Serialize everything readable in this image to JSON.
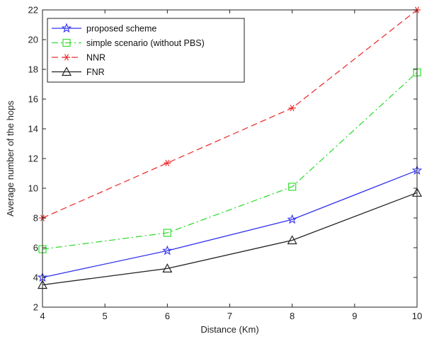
{
  "chart_data": {
    "type": "line",
    "title": "",
    "xlabel": "Distance (Km)",
    "ylabel": "Average number of the hops",
    "xlim": [
      4,
      10
    ],
    "ylim": [
      2,
      22
    ],
    "xticks": [
      4,
      5,
      6,
      7,
      8,
      9,
      10
    ],
    "yticks": [
      2,
      4,
      6,
      8,
      10,
      12,
      14,
      16,
      18,
      20,
      22
    ],
    "grid": false,
    "legend_position": "top-left",
    "series": [
      {
        "name": "proposed scheme",
        "color": "#3333ee",
        "dash": "solid",
        "marker": "star",
        "x": [
          4,
          6,
          8,
          10
        ],
        "y": [
          4.0,
          5.8,
          7.9,
          11.2
        ]
      },
      {
        "name": "simple scenario (without PBS)",
        "color": "#33dd33",
        "dash": "dashdot",
        "marker": "square",
        "x": [
          4,
          6,
          8,
          10
        ],
        "y": [
          5.9,
          7.0,
          10.1,
          17.8
        ]
      },
      {
        "name": "NNR",
        "color": "#ee3333",
        "dash": "dashed",
        "marker": "asterisk",
        "x": [
          4,
          6,
          8,
          10
        ],
        "y": [
          8.0,
          11.7,
          15.4,
          22.0
        ]
      },
      {
        "name": "FNR",
        "color": "#222222",
        "dash": "solid",
        "marker": "triangle",
        "x": [
          4,
          6,
          8,
          10
        ],
        "y": [
          3.5,
          4.6,
          6.5,
          9.7
        ]
      }
    ]
  }
}
